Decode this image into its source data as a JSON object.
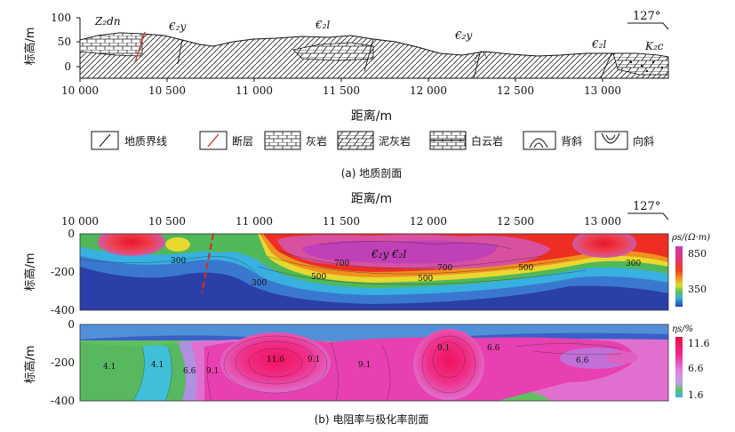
{
  "panel_a": {
    "ylabel": "标高/m",
    "yticks": [
      "100",
      "50",
      "0"
    ],
    "xticks": [
      "10 000",
      "10 500",
      "11 000",
      "11 500",
      "12 000",
      "12 500",
      "13 000"
    ],
    "xlabel": "距离/m",
    "azimuth": "127°",
    "units": [
      "Z₂dn",
      "€₂y",
      "€₂l",
      "€₂y",
      "€₂l",
      "K₂c"
    ],
    "caption": "(a) 地质剖面"
  },
  "legend": [
    {
      "label": "地质界线",
      "icon": "boundary-line-icon"
    },
    {
      "label": "断层",
      "icon": "fault-line-icon",
      "color": "#d03020"
    },
    {
      "label": "灰岩",
      "icon": "limestone-pattern-icon"
    },
    {
      "label": "泥灰岩",
      "icon": "marl-pattern-icon"
    },
    {
      "label": "白云岩",
      "icon": "dolomite-pattern-icon"
    },
    {
      "label": "背斜",
      "icon": "anticline-icon"
    },
    {
      "label": "向斜",
      "icon": "syncline-icon"
    }
  ],
  "panel_b": {
    "xlabel": "距离/m",
    "xticks": [
      "10 000",
      "10 500",
      "11 000",
      "11 500",
      "12 000",
      "12 500",
      "13 000"
    ],
    "azimuth": "127°",
    "resistivity": {
      "ylabel": "标高/m",
      "yticks": [
        "0",
        "-200",
        "-400"
      ],
      "colorbar_title": "ρs/(Ω·m)",
      "colorbar_ticks": [
        "850",
        "350"
      ],
      "contour_labels": [
        "300",
        "700",
        "500",
        "700",
        "500",
        "500",
        "300",
        "300"
      ],
      "strata_label": "€₂y   €₂l"
    },
    "chargeability": {
      "ylabel": "标高/m",
      "yticks": [
        "0",
        "-200",
        "-400"
      ],
      "colorbar_title": "ηs/%",
      "colorbar_ticks": [
        "11.6",
        "6.6",
        "1.6"
      ],
      "contour_labels": [
        "4.1",
        "4.1",
        "6.6",
        "9.1",
        "11.6",
        "9.1",
        "9.1",
        "9.1",
        "6.6",
        "6.6"
      ]
    },
    "caption": "(b) 电阻率与极化率剖面"
  },
  "colors": {
    "fault": "#d03020",
    "res_high": "#e8202a",
    "res_mid": "#d050a0",
    "res_low": "#3050c0",
    "ip_high": "#f0206a",
    "ip_low": "#50c0e8"
  }
}
